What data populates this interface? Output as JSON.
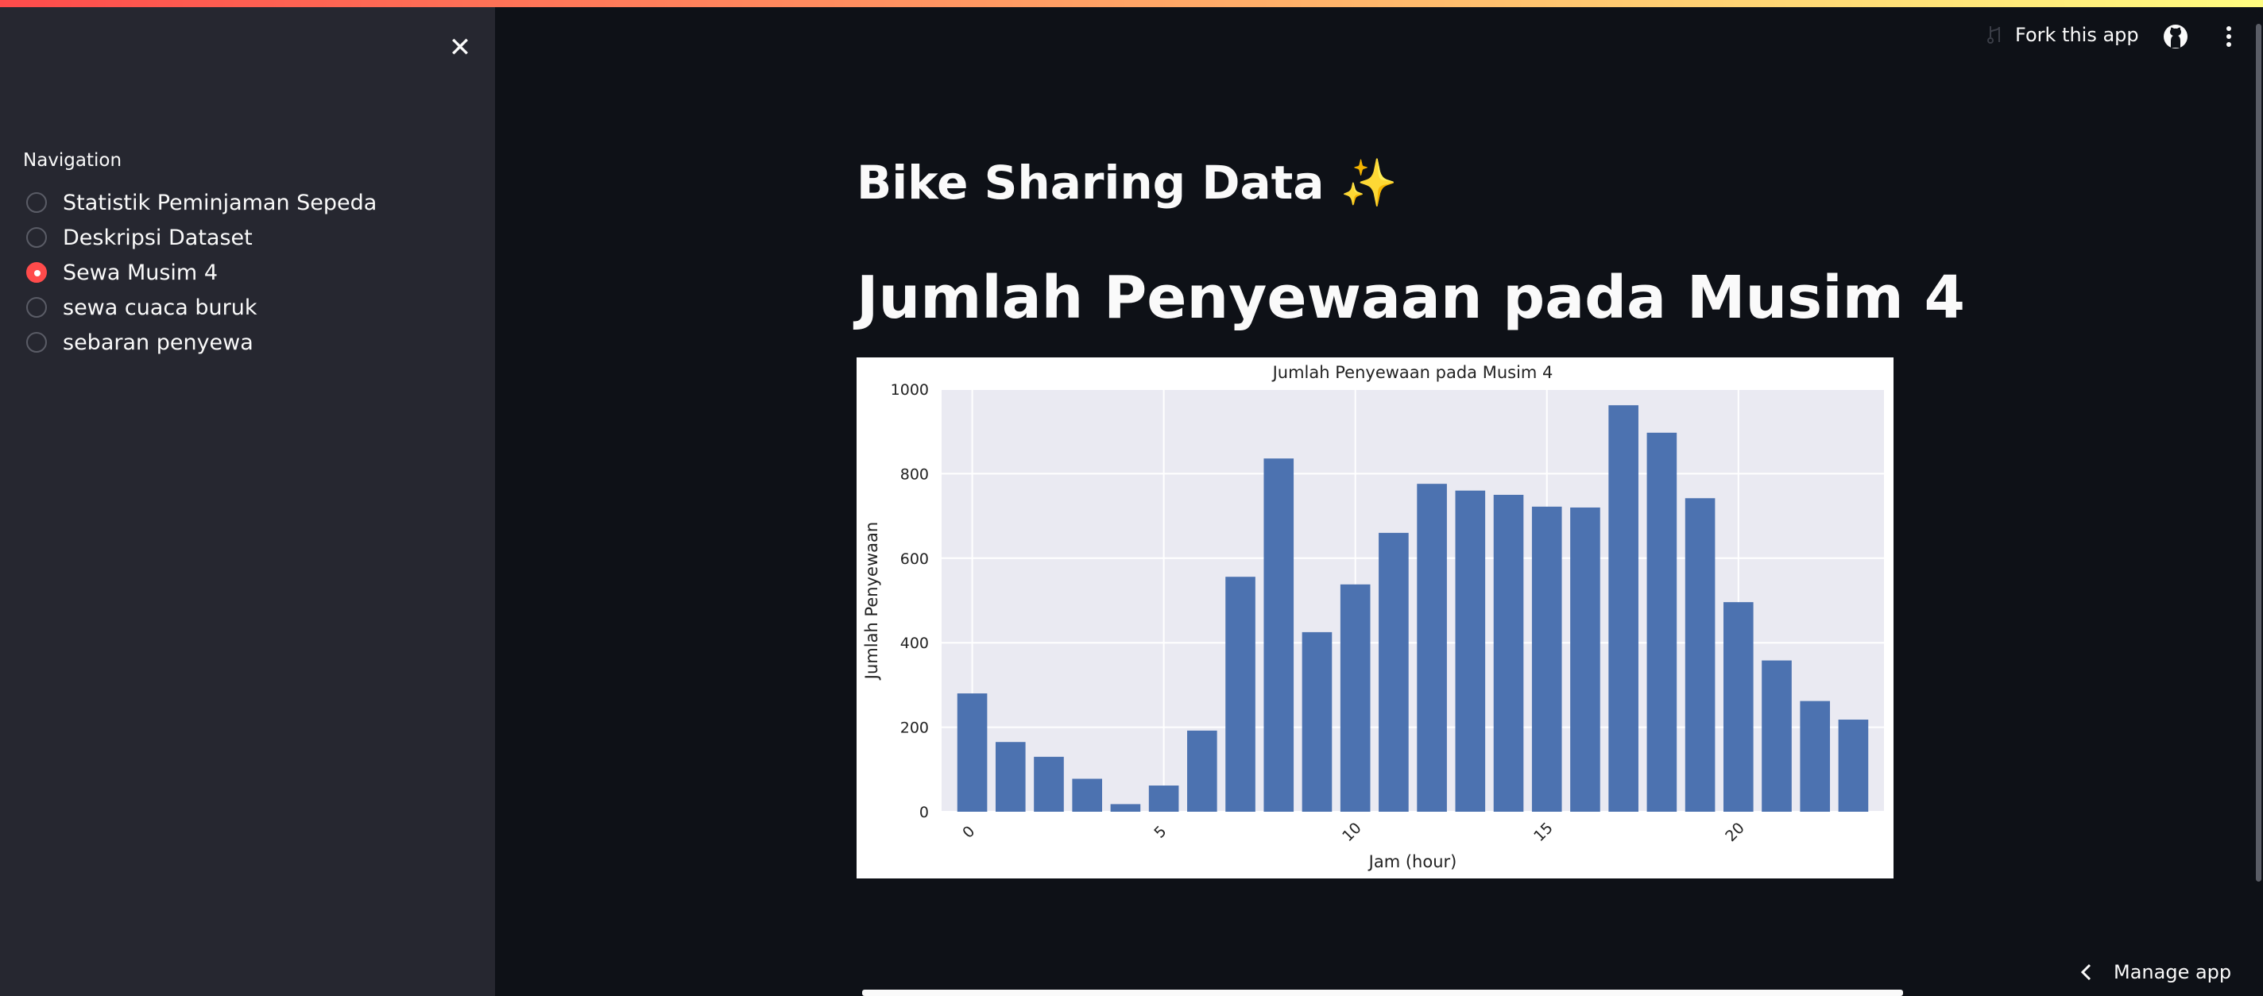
{
  "app": {
    "accent": "#ff4b4b"
  },
  "sidebar": {
    "nav_label": "Navigation",
    "close_icon": "close-icon",
    "items": [
      {
        "label": "Statistik Peminjaman Sepeda",
        "selected": false
      },
      {
        "label": "Deskripsi Dataset",
        "selected": false
      },
      {
        "label": "Sewa Musim 4",
        "selected": true
      },
      {
        "label": "sewa cuaca buruk",
        "selected": false
      },
      {
        "label": "sebaran penyewa",
        "selected": false
      }
    ]
  },
  "header": {
    "fork_label": "Fork this app",
    "github_icon": "github-icon",
    "menu_icon": "kebab-menu-icon"
  },
  "main": {
    "title": "Bike Sharing Data ✨",
    "subheader": "Jumlah Penyewaan pada Musim 4"
  },
  "footer": {
    "manage_label": "Manage app"
  },
  "chart_data": {
    "type": "bar",
    "title": "Jumlah Penyewaan pada Musim 4",
    "xlabel": "Jam (hour)",
    "ylabel": "Jumlah Penyewaan",
    "xticks": [
      0,
      5,
      10,
      15,
      20
    ],
    "yticks": [
      0,
      200,
      400,
      600,
      800,
      1000
    ],
    "ylim": [
      0,
      1000
    ],
    "grid": true,
    "categories": [
      0,
      1,
      2,
      3,
      4,
      5,
      6,
      7,
      8,
      9,
      10,
      11,
      12,
      13,
      14,
      15,
      16,
      17,
      18,
      19,
      20,
      21,
      22,
      23
    ],
    "values": [
      280,
      165,
      130,
      78,
      18,
      62,
      192,
      556,
      836,
      425,
      538,
      660,
      776,
      760,
      750,
      722,
      720,
      962,
      897,
      742,
      496,
      358,
      262,
      218
    ],
    "bar_color": "#4c72b0",
    "background": "#eaeaf2"
  }
}
